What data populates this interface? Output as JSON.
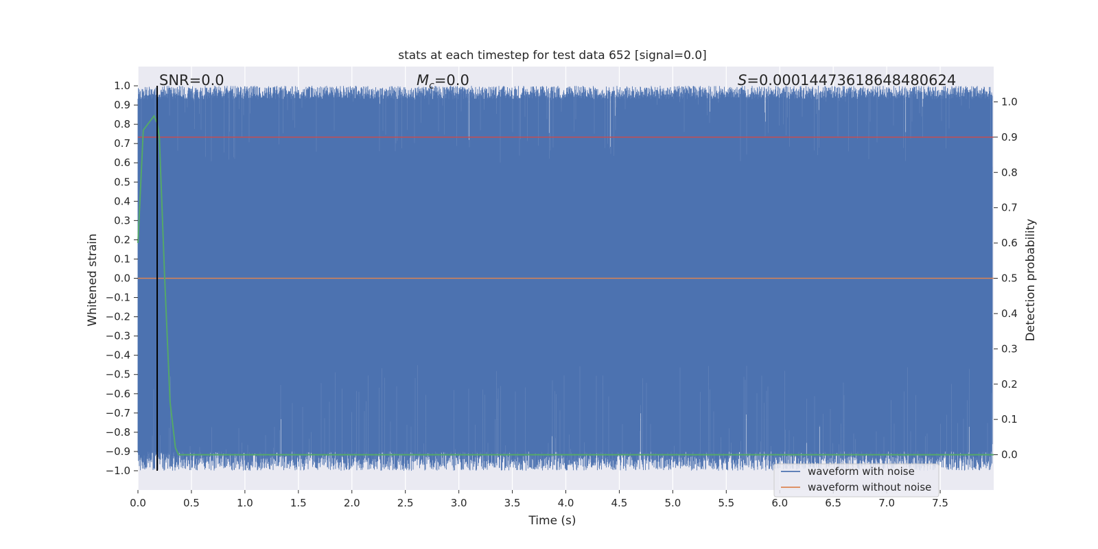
{
  "chart_data": {
    "type": "line",
    "title": "stats at each timestep for test data 652 [signal=0.0]",
    "xlabel": "Time (s)",
    "ylabel": "Whitened strain",
    "y2label": "Detection probability",
    "xlim": [
      0.0,
      8.0
    ],
    "ylim": [
      -1.1,
      1.1
    ],
    "y2lim": [
      -0.1,
      1.1
    ],
    "x_ticks": [
      "0.0",
      "0.5",
      "1.0",
      "1.5",
      "2.0",
      "2.5",
      "3.0",
      "3.5",
      "4.0",
      "4.5",
      "5.0",
      "5.5",
      "6.0",
      "6.5",
      "7.0",
      "7.5"
    ],
    "y_ticks": [
      "1.0",
      "0.9",
      "0.8",
      "0.7",
      "0.6",
      "0.5",
      "0.4",
      "0.3",
      "0.2",
      "0.1",
      "0.0",
      "−0.1",
      "−0.2",
      "−0.3",
      "−0.4",
      "−0.5",
      "−0.6",
      "−0.7",
      "−0.8",
      "−0.9",
      "−1.0"
    ],
    "y2_ticks": [
      "1.0",
      "0.9",
      "0.8",
      "0.7",
      "0.6",
      "0.5",
      "0.4",
      "0.3",
      "0.2",
      "0.1",
      "0.0"
    ],
    "grid": true,
    "legend_position": "lower-right",
    "annotations": {
      "snr": "SNR=0.0",
      "mc_symbol": "M",
      "mc_sub": "c",
      "mc_value": "=0.0",
      "s_symbol": "S",
      "s_value": "=0.00014473618648480624"
    },
    "series": [
      {
        "name": "waveform with noise",
        "axis": "left",
        "color": "#4c72b0",
        "style": "dense noise filling approximately [-1.0, 1.0] across the full time range",
        "envelope": {
          "x_range": [
            0.0,
            7.99
          ],
          "y_min": -1.0,
          "y_max": 1.0
        }
      },
      {
        "name": "waveform without noise",
        "axis": "left",
        "color": "#dd8452",
        "x": [
          0.0,
          8.0
        ],
        "y": [
          0.0,
          0.0
        ]
      },
      {
        "axis": "right",
        "color": "#55a868",
        "x": [
          0.0,
          0.05,
          0.1,
          0.15,
          0.18,
          0.2,
          0.25,
          0.3,
          0.35,
          0.38,
          0.5,
          1.0,
          2.0,
          3.0,
          4.0,
          5.0,
          6.0,
          7.0,
          8.0
        ],
        "y": [
          0.6,
          0.92,
          0.94,
          0.96,
          0.94,
          0.9,
          0.5,
          0.15,
          0.02,
          0.0,
          0.0,
          0.0,
          0.0,
          0.0,
          0.0,
          0.0,
          0.0,
          0.0,
          0.0
        ]
      }
    ],
    "threshold_line": {
      "axis": "right",
      "color": "#c44e52",
      "y": 0.9
    },
    "marker_line": {
      "color": "#000000",
      "x": 0.18
    }
  }
}
